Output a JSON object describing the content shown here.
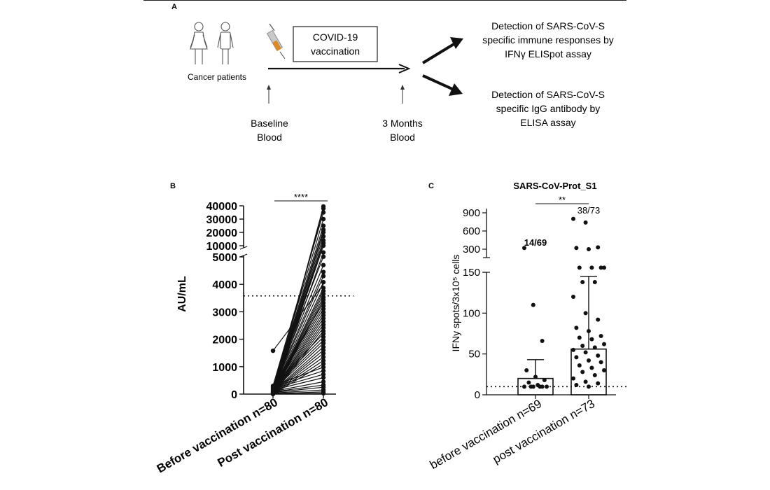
{
  "panel_a": {
    "panel_label": "A",
    "patients_label": "Cancer patients",
    "vaccination_box": [
      "COVID-19",
      "vaccination"
    ],
    "baseline_label": [
      "Baseline",
      "Blood"
    ],
    "months_label": [
      "3 Months",
      "Blood"
    ],
    "detection_elispot": [
      "Detection of SARS-CoV-S",
      "specific immune responses by",
      "IFNγ ELISpot assay"
    ],
    "detection_elisa": [
      "Detection of SARS-CoV-S",
      "specific IgG antibody by",
      "ELISA assay"
    ],
    "icons": [
      "female-person-icon",
      "male-person-icon",
      "syringe-icon"
    ]
  },
  "chart_data": [
    {
      "panel_label": "B",
      "type": "scatter",
      "subtype": "paired-line",
      "ylabel": "AU/mL",
      "categories": [
        "Before vaccination n=80",
        "Post vaccination n=80"
      ],
      "y_ticks_lower": [
        "0",
        "1000",
        "2000",
        "3000",
        "4000",
        "5000"
      ],
      "y_ticks_upper": [
        "10000",
        "20000",
        "30000",
        "40000"
      ],
      "ylim": [
        0,
        40000
      ],
      "y_axis_break": [
        5000,
        10000
      ],
      "threshold": 3580,
      "significance": "****",
      "before_values": [
        0,
        20,
        40,
        60,
        80,
        100,
        150,
        200,
        250,
        300,
        1580
      ],
      "post_values": [
        30,
        80,
        150,
        250,
        330,
        450,
        600,
        720,
        850,
        980,
        1100,
        1220,
        1350,
        1480,
        1600,
        1720,
        1850,
        1960,
        2080,
        2200,
        2300,
        2420,
        2530,
        2640,
        2760,
        2870,
        2980,
        3100,
        3210,
        3320,
        3430,
        3530,
        3650,
        3760,
        3870,
        4080,
        4300,
        4450,
        4700,
        5100,
        7000,
        10000,
        12000,
        14000,
        17000,
        20000,
        22000,
        25000,
        30000,
        35000,
        38000,
        39500
      ]
    },
    {
      "panel_label": "C",
      "type": "bar",
      "title": "SARS-CoV-Prot_S1",
      "ylabel": "IFNy spots/3x10⁵ cells",
      "categories": [
        "before vaccination n=69",
        "post vaccination n=73"
      ],
      "values": [
        20,
        56
      ],
      "error_upper": [
        43,
        145
      ],
      "y_ticks_lower": [
        "0",
        "50",
        "100",
        "150"
      ],
      "y_ticks_upper": [
        "300",
        "600",
        "900"
      ],
      "ylim": [
        0,
        900
      ],
      "y_axis_break": [
        150,
        300
      ],
      "threshold": 10,
      "significance": "**",
      "responder_counts": [
        "14/69",
        "38/73"
      ],
      "before_points": [
        320,
        110,
        66,
        30,
        22,
        18,
        15,
        12,
        10,
        10,
        10,
        10,
        10,
        10
      ],
      "post_points": [
        800,
        740,
        330,
        320,
        300,
        200,
        200,
        200,
        200,
        138,
        138,
        120,
        100,
        92,
        82,
        78,
        72,
        70,
        68,
        62,
        60,
        58,
        55,
        52,
        48,
        46,
        42,
        40,
        36,
        33,
        30,
        28,
        24,
        20,
        16,
        14,
        12,
        10
      ]
    }
  ]
}
